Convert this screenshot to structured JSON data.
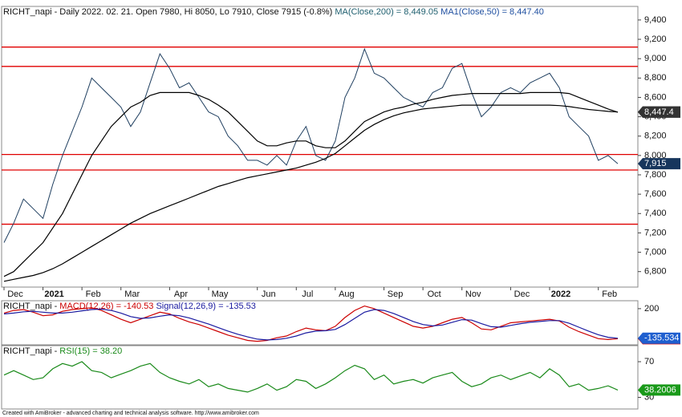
{
  "chart_data": [
    {
      "type": "line",
      "title": "RICHT_napi - Daily 2022. 02. 21. Open 7980, Hi 8050, Lo 7910, Close 7915 (-0.8%)",
      "categories": [
        "Dec",
        null,
        null,
        null,
        "2021",
        null,
        null,
        null,
        "Feb",
        null,
        null,
        null,
        "Mar",
        null,
        null,
        null,
        null,
        "Apr",
        null,
        null,
        null,
        "May",
        null,
        null,
        null,
        null,
        "Jun",
        null,
        null,
        null,
        "Jul",
        null,
        null,
        null,
        "Aug",
        null,
        null,
        null,
        null,
        "Sep",
        null,
        null,
        null,
        "Oct",
        null,
        null,
        null,
        "Nov",
        null,
        null,
        null,
        null,
        "Dec",
        null,
        null,
        null,
        "2022",
        null,
        null,
        null,
        null,
        "Feb",
        null,
        null
      ],
      "series": [
        {
          "color": "#1f3f60",
          "last_label": "7,915",
          "badge": "#17365d",
          "values": [
            7100,
            7300,
            7550,
            7450,
            7350,
            7700,
            8000,
            8250,
            8500,
            8800,
            8700,
            8600,
            8500,
            8300,
            8450,
            8750,
            9050,
            8900,
            8700,
            8750,
            8600,
            8450,
            8400,
            8200,
            8100,
            7950,
            7950,
            7900,
            8000,
            7900,
            8150,
            8300,
            8000,
            7950,
            8150,
            8600,
            8800,
            9100,
            8850,
            8800,
            8700,
            8600,
            8550,
            8500,
            8650,
            8700,
            8900,
            8950,
            8650,
            8400,
            8500,
            8650,
            8700,
            8650,
            8750,
            8800,
            8850,
            8700,
            8400,
            8300,
            8200,
            7950,
            8000,
            7915
          ]
        },
        {
          "name": "MA(Close,200) = 8,449.05",
          "color": "#000000",
          "label_color": "#1f5f6f",
          "last_label": "8,449.05",
          "badge": "#111111",
          "values": [
            6700,
            6720,
            6740,
            6760,
            6790,
            6830,
            6880,
            6940,
            7000,
            7060,
            7120,
            7180,
            7240,
            7300,
            7350,
            7400,
            7440,
            7480,
            7520,
            7560,
            7600,
            7640,
            7680,
            7710,
            7740,
            7770,
            7790,
            7810,
            7830,
            7850,
            7870,
            7900,
            7930,
            7970,
            8020,
            8100,
            8180,
            8260,
            8320,
            8370,
            8410,
            8440,
            8460,
            8480,
            8490,
            8500,
            8510,
            8520,
            8520,
            8520,
            8520,
            8520,
            8520,
            8520,
            8520,
            8520,
            8520,
            8515,
            8505,
            8490,
            8475,
            8465,
            8455,
            8449.05
          ]
        },
        {
          "name": "MA1(Close,50) = 8,447.40",
          "color": "#000000",
          "label_color": "#1f4fa0",
          "last_label": "8,447.4",
          "badge": "#333333",
          "values": [
            6750,
            6800,
            6900,
            7000,
            7100,
            7250,
            7400,
            7600,
            7800,
            8000,
            8150,
            8300,
            8400,
            8500,
            8550,
            8620,
            8650,
            8650,
            8650,
            8650,
            8620,
            8580,
            8520,
            8450,
            8350,
            8250,
            8150,
            8100,
            8100,
            8130,
            8150,
            8150,
            8100,
            8080,
            8080,
            8150,
            8250,
            8350,
            8400,
            8450,
            8480,
            8500,
            8530,
            8550,
            8580,
            8600,
            8620,
            8630,
            8640,
            8640,
            8640,
            8640,
            8640,
            8640,
            8650,
            8650,
            8650,
            8650,
            8640,
            8600,
            8560,
            8520,
            8480,
            8447.4
          ]
        }
      ],
      "hlines": [
        9120,
        8920,
        8010,
        7850,
        7290
      ],
      "hline_color": "#e00000",
      "ylim": [
        6640,
        9540
      ],
      "yticks": [
        {
          "value": 6800,
          "label": "6,800"
        },
        {
          "value": 7000,
          "label": "7,000"
        },
        {
          "value": 7200,
          "label": "7,200"
        },
        {
          "value": 7400,
          "label": "7,400"
        },
        {
          "value": 7600,
          "label": "7,600"
        },
        {
          "value": 7800,
          "label": "7,800"
        },
        {
          "value": 8000,
          "label": "8,000"
        },
        {
          "value": 8200,
          "label": "8,200"
        },
        {
          "value": 8400,
          "label": "8,400"
        },
        {
          "value": 8600,
          "label": "8,600"
        },
        {
          "value": 8800,
          "label": "8,800"
        },
        {
          "value": 9000,
          "label": "9,000"
        },
        {
          "value": 9200,
          "label": "9,200"
        },
        {
          "value": 9400,
          "label": "9,400"
        }
      ]
    },
    {
      "type": "line",
      "title": "RICHT_napi - ",
      "series": [
        {
          "name": "MACD(12,26) = -140.53",
          "color": "#cc0000",
          "label_color": "#cc0000",
          "last_label": "-140.529",
          "badge": "#dd0000",
          "values": [
            150,
            180,
            190,
            160,
            120,
            130,
            170,
            190,
            200,
            210,
            180,
            130,
            80,
            40,
            80,
            120,
            160,
            140,
            90,
            50,
            20,
            -20,
            -60,
            -100,
            -130,
            -160,
            -170,
            -160,
            -130,
            -110,
            -60,
            -20,
            -40,
            -50,
            0,
            100,
            180,
            230,
            200,
            150,
            100,
            50,
            0,
            -20,
            0,
            40,
            80,
            100,
            40,
            -30,
            -40,
            0,
            40,
            50,
            60,
            70,
            80,
            60,
            -10,
            -60,
            -100,
            -140,
            -150,
            -140.53
          ]
        },
        {
          "name": "Signal(12,26,9) = -135.53",
          "color": "#1a1aa0",
          "label_color": "#1a1aa0",
          "last_label": "-135.534",
          "badge": "#1f5fcf",
          "values": [
            140,
            150,
            165,
            170,
            160,
            150,
            150,
            160,
            175,
            190,
            195,
            180,
            150,
            110,
            90,
            95,
            115,
            130,
            120,
            95,
            60,
            25,
            -15,
            -55,
            -90,
            -120,
            -145,
            -155,
            -150,
            -135,
            -110,
            -75,
            -55,
            -50,
            -35,
            20,
            90,
            160,
            190,
            180,
            145,
            100,
            55,
            20,
            5,
            15,
            45,
            75,
            70,
            30,
            -5,
            -10,
            10,
            30,
            45,
            55,
            65,
            65,
            35,
            -10,
            -55,
            -95,
            -125,
            -135.53
          ]
        }
      ],
      "ylim": [
        -210,
        290
      ],
      "yticks": [
        200
      ]
    },
    {
      "type": "line",
      "title": "RICHT_napi - ",
      "series": [
        {
          "name": "RSI(15) = 38.20",
          "color": "#1a8a1a",
          "label_color": "#1a8a1a",
          "last_label": "38.2006",
          "badge": "#1a9a1a",
          "values": [
            55,
            60,
            55,
            50,
            52,
            62,
            68,
            65,
            70,
            60,
            58,
            52,
            56,
            60,
            65,
            68,
            58,
            52,
            48,
            45,
            50,
            42,
            45,
            40,
            38,
            36,
            40,
            45,
            38,
            42,
            50,
            48,
            40,
            45,
            52,
            60,
            66,
            62,
            50,
            55,
            45,
            48,
            50,
            46,
            52,
            55,
            58,
            48,
            42,
            45,
            52,
            55,
            50,
            54,
            58,
            52,
            62,
            55,
            42,
            45,
            38,
            40,
            43,
            38.2
          ]
        }
      ],
      "ylim": [
        17,
        88
      ],
      "yticks": [
        30,
        70
      ]
    }
  ],
  "footer": "Created with AmiBroker - advanced charting and technical analysis software. http://www.amibroker.com"
}
